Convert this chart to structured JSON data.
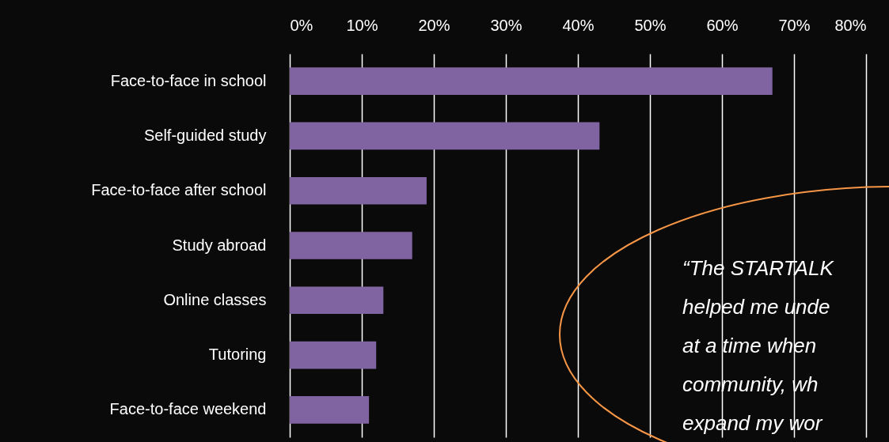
{
  "chart_data": {
    "type": "bar",
    "orientation": "horizontal",
    "categories": [
      "Face-to-face in school",
      "Self-guided study",
      "Face-to-face after school",
      "Study abroad",
      "Online classes",
      "Tutoring",
      "Face-to-face weekend"
    ],
    "values": [
      67,
      43,
      19,
      17,
      13,
      12,
      11
    ],
    "color": "#8064a2",
    "xlim": [
      0,
      80
    ],
    "xticks": [
      {
        "value": 0,
        "label": "0%"
      },
      {
        "value": 10,
        "label": "10%"
      },
      {
        "value": 20,
        "label": "20%"
      },
      {
        "value": 30,
        "label": "30%"
      },
      {
        "value": 40,
        "label": "40%"
      },
      {
        "value": 50,
        "label": "50%"
      },
      {
        "value": 60,
        "label": "60%"
      },
      {
        "value": 70,
        "label": "70%"
      },
      {
        "value": 80,
        "label": "80%"
      }
    ],
    "grid": "x",
    "annotations": [
      "“The STARTALK",
      "helped me unde",
      "at a time when",
      "community, wh",
      "expand my wor"
    ]
  }
}
